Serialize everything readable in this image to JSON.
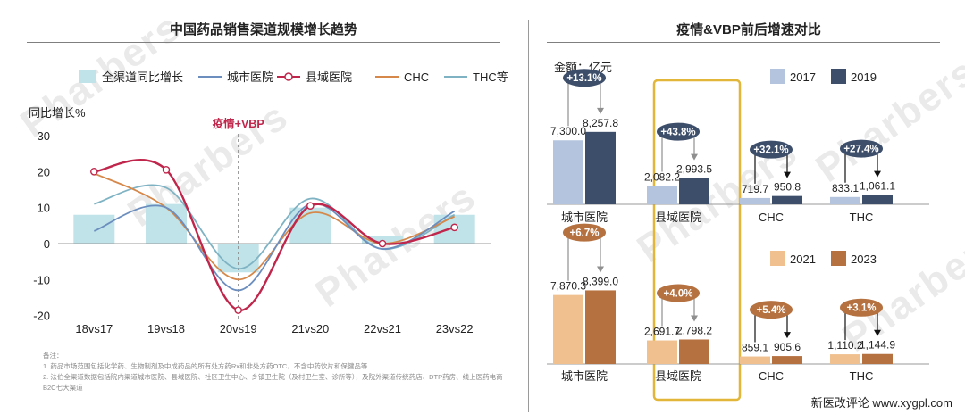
{
  "left_panel": {
    "title": "中国药品销售渠道规模增长趋势",
    "ylabel": "同比增长%",
    "annotation": "疫情+VBP",
    "legend": [
      "全渠道同比增长",
      "城市医院",
      "县域医院",
      "CHC",
      "THC等"
    ]
  },
  "right_panel": {
    "title": "疫情&VBP前后增速对比",
    "unit_label": "金额：亿元",
    "legend_top": [
      "2017",
      "2019"
    ],
    "legend_bottom": [
      "2021",
      "2023"
    ]
  },
  "chart_data": [
    {
      "type": "line",
      "title": "中国药品销售渠道规模增长趋势",
      "ylabel": "同比增长%",
      "ylim": [
        -20,
        30
      ],
      "yticks": [
        30,
        20,
        10,
        0,
        -10,
        -20
      ],
      "categories": [
        "18vs17",
        "19vs18",
        "20vs19",
        "21vs20",
        "22vs21",
        "23vs22"
      ],
      "series": [
        {
          "name": "全渠道同比增长",
          "kind": "bar",
          "values": [
            8,
            11,
            -8,
            10,
            2,
            8
          ]
        },
        {
          "name": "城市医院",
          "values": [
            3.5,
            10,
            -13,
            11,
            -1.5,
            9
          ]
        },
        {
          "name": "县域医院",
          "values": [
            20,
            20.5,
            -18.5,
            10.5,
            0,
            4.5
          ]
        },
        {
          "name": "CHC",
          "values": [
            19.5,
            10,
            -10,
            8.5,
            0,
            7.5
          ]
        },
        {
          "name": "THC等",
          "values": [
            11,
            15.5,
            -7,
            12.5,
            -1.5,
            8
          ]
        }
      ],
      "annotation": {
        "text": "疫情+VBP",
        "at": "20vs19"
      },
      "grid": false
    },
    {
      "type": "bar",
      "title": "疫情&VBP前后增速对比",
      "unit": "金额：亿元",
      "categories": [
        "城市医院",
        "县域医院",
        "CHC",
        "THC"
      ],
      "series": [
        {
          "name": "2017",
          "values": [
            7300.0,
            2082.2,
            719.7,
            833.1
          ],
          "labels": [
            "7,300.0",
            "2,082.2",
            "719.7",
            "833.1"
          ]
        },
        {
          "name": "2019",
          "values": [
            8257.8,
            2993.5,
            950.8,
            1061.1
          ],
          "labels": [
            "8,257.8",
            "2,993.5",
            "950.8",
            "1,061.1"
          ]
        }
      ],
      "growth_labels": [
        "+13.1%",
        "+43.8%",
        "+32.1%",
        "+27.4%"
      ]
    },
    {
      "type": "bar",
      "categories": [
        "城市医院",
        "县域医院",
        "CHC",
        "THC"
      ],
      "series": [
        {
          "name": "2021",
          "values": [
            7870.3,
            2691.7,
            859.1,
            1110.2
          ],
          "labels": [
            "7,870.3",
            "2,691.7",
            "859.1",
            "1,110.2"
          ]
        },
        {
          "name": "2023",
          "values": [
            8399.0,
            2798.2,
            905.6,
            1144.9
          ],
          "labels": [
            "8,399.0",
            "2,798.2",
            "905.6",
            "1,144.9"
          ]
        }
      ],
      "growth_labels": [
        "+6.7%",
        "+4.0%",
        "+5.4%",
        "+3.1%"
      ]
    }
  ],
  "colors": {
    "all_channel_bar": "#bfe3e8",
    "city": "#6c8ebf",
    "county": "#c0264b",
    "chc": "#d6884a",
    "thc": "#7fb3c4",
    "y2017": "#b4c3de",
    "y2019": "#3d4e6b",
    "y2021": "#f0c08e",
    "y2023": "#b5713f",
    "highlight": "#e2b638"
  },
  "notes": {
    "heading": "备注：",
    "items": [
      "1.    药品市场范围包括化学药、生物制剂及中成药品的所有处方药Rx和非处方药OTC，不含中药饮片和保健品等",
      "2.    法伯全渠道数据包括院内渠道城市医院、县域医院、社区卫生中心、乡镇卫生院（及村卫生室、诊所等），及院外渠道传统药店、DTP药房、线上医药电商B2C七大渠道"
    ]
  },
  "watermark": "Pharbers",
  "footer": "新医改评论 www.xygpl.com"
}
